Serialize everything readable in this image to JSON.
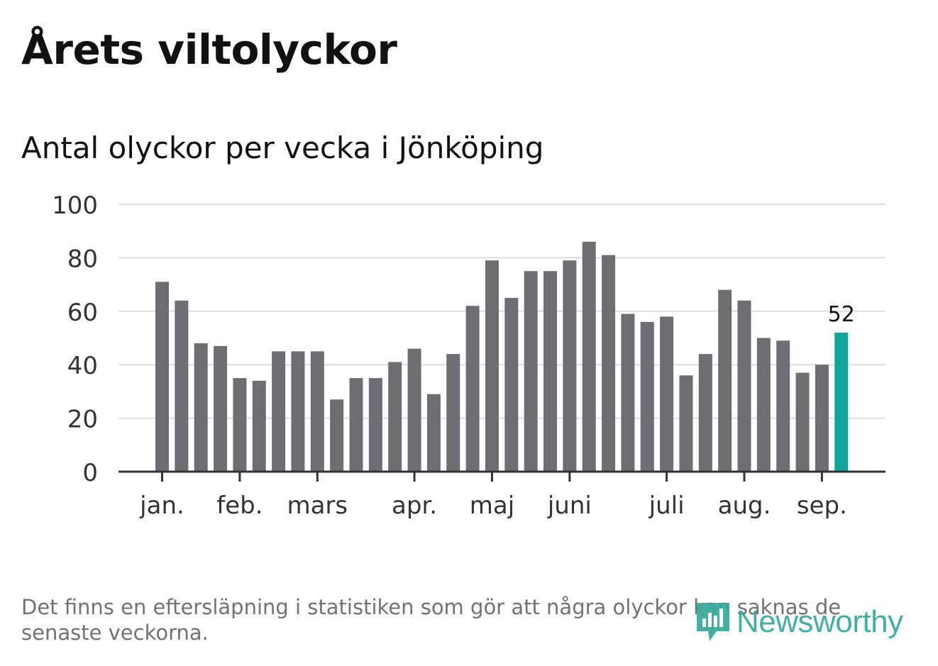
{
  "title": "Årets viltolyckor",
  "subtitle": "Antal olyckor per vecka i Jönköping",
  "footnote": "Det finns en eftersläpning i statistiken som gör att några olyckor kan saknas de senaste veckorna.",
  "brand": {
    "name": "Newsworthy",
    "icon": "newsworthy-logo-icon"
  },
  "colors": {
    "bar": "#6e6d73",
    "highlight": "#0fa59a",
    "grid": "#dddddd",
    "axis": "#333333",
    "text": "#111111",
    "muted": "#727272"
  },
  "chart_data": {
    "type": "bar",
    "ylim": [
      0,
      100
    ],
    "yticks": [
      0,
      20,
      40,
      60,
      80,
      100
    ],
    "grid": true,
    "values": [
      71,
      64,
      48,
      47,
      35,
      34,
      45,
      45,
      45,
      27,
      35,
      35,
      41,
      46,
      29,
      44,
      62,
      79,
      65,
      75,
      75,
      79,
      86,
      81,
      59,
      56,
      58,
      36,
      44,
      68,
      64,
      50,
      49,
      37,
      40,
      52
    ],
    "highlight_index": 35,
    "highlight_label": "52",
    "month_ticks": [
      {
        "label": "jan.",
        "bar": 0
      },
      {
        "label": "feb.",
        "bar": 4
      },
      {
        "label": "mars",
        "bar": 8
      },
      {
        "label": "apr.",
        "bar": 13
      },
      {
        "label": "maj",
        "bar": 17
      },
      {
        "label": "juni",
        "bar": 21
      },
      {
        "label": "juli",
        "bar": 26
      },
      {
        "label": "aug.",
        "bar": 30
      },
      {
        "label": "sep.",
        "bar": 34
      }
    ]
  }
}
